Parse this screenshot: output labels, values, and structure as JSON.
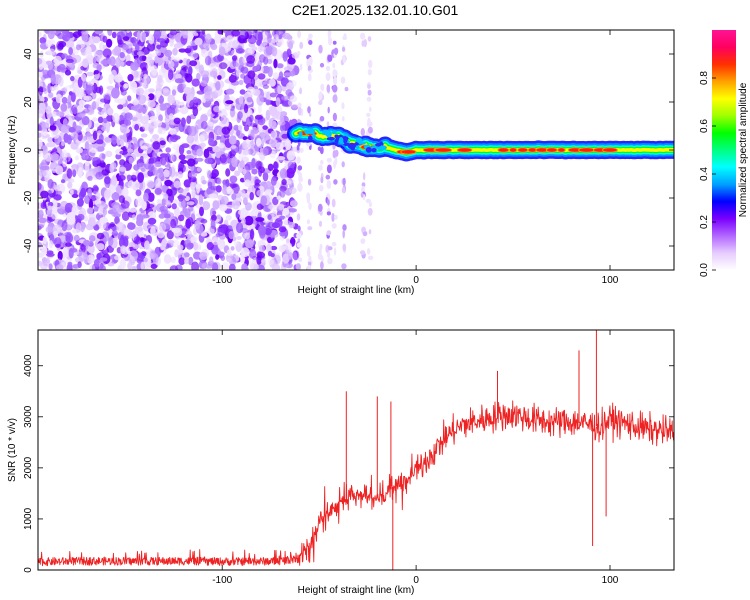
{
  "title": "C2E1.2025.132.01.10.G01",
  "chart_data": [
    {
      "type": "heatmap",
      "description_of_axes": "spectrogram",
      "xlabel": "Height of straight line (km)",
      "ylabel": "Frequency (Hz)",
      "xlim": [
        -195,
        133
      ],
      "ylim": [
        -50,
        50
      ],
      "x_ticks": [
        -100,
        0,
        100
      ],
      "x_tick_labels": [
        "-100",
        "0",
        "100"
      ],
      "y_ticks": [
        -40,
        -20,
        0,
        20,
        40
      ],
      "y_tick_labels": [
        "-40",
        "-20",
        "0",
        "20",
        "40"
      ],
      "noise_region_x": [
        -195,
        -62
      ],
      "scattered_region_x": [
        -62,
        -20
      ],
      "signal_track": {
        "x": [
          -62,
          -55,
          -48,
          -42,
          -38,
          -34,
          -30,
          -25,
          -20,
          -15,
          -10,
          -5,
          0,
          10,
          20,
          40,
          60,
          80,
          100,
          120,
          133
        ],
        "y": [
          7,
          7,
          6,
          6,
          5,
          3,
          2,
          1,
          1,
          1,
          0,
          -1,
          0,
          0,
          0,
          0,
          0,
          0,
          0,
          0,
          0
        ]
      },
      "colorbar": {
        "label": "Normalized spectral amplitude",
        "range": [
          0.0,
          1.0
        ],
        "ticks": [
          0.0,
          0.2,
          0.4,
          0.6,
          0.8
        ],
        "tick_labels": [
          "0.0",
          "0.2",
          "0.4",
          "0.6",
          "0.8"
        ],
        "colors": [
          "#ffffff",
          "#e6ccff",
          "#b266ff",
          "#7a00ff",
          "#0000ff",
          "#00a0ff",
          "#00ffff",
          "#00ff80",
          "#00ff00",
          "#a0ff00",
          "#ffff00",
          "#ffa000",
          "#ff3000",
          "#ff0060",
          "#ff1493"
        ]
      }
    },
    {
      "type": "line",
      "xlabel": "Height of straight line (km)",
      "ylabel": "SNR (10 * v/v)",
      "xlim": [
        -195,
        133
      ],
      "ylim": [
        0,
        4700
      ],
      "x_ticks": [
        -100,
        0,
        100
      ],
      "x_tick_labels": [
        "-100",
        "0",
        "100"
      ],
      "y_ticks": [
        0,
        1000,
        2000,
        3000,
        4000
      ],
      "y_tick_labels": [
        "0",
        "1000",
        "2000",
        "3000",
        "4000"
      ],
      "line_color": "#ee2222",
      "series": [
        {
          "x": [
            -195,
            -180,
            -160,
            -140,
            -120,
            -100,
            -80,
            -70,
            -62,
            -55,
            -50,
            -45,
            -40,
            -35,
            -30,
            -25,
            -20,
            -15,
            -10,
            -5,
            0,
            5,
            10,
            15,
            20,
            25,
            30,
            40,
            50,
            60,
            70,
            80,
            90,
            95,
            100,
            110,
            120,
            133
          ],
          "values": [
            160,
            170,
            175,
            170,
            175,
            165,
            170,
            175,
            220,
            500,
            900,
            1150,
            1300,
            1450,
            1500,
            1450,
            1400,
            1500,
            1700,
            1750,
            1900,
            2150,
            2350,
            2600,
            2750,
            2850,
            2900,
            3000,
            3050,
            2950,
            2900,
            2900,
            2850,
            2800,
            2950,
            2850,
            2750,
            2700
          ]
        }
      ],
      "spikes": [
        {
          "x": -36,
          "y": 3500
        },
        {
          "x": -20,
          "y": 3400
        },
        {
          "x": -13,
          "y": 3300
        },
        {
          "x": 42,
          "y": 3900
        },
        {
          "x": 84,
          "y": 4300
        },
        {
          "x": 93,
          "y": 4700
        },
        {
          "x": 91,
          "y": 470
        },
        {
          "x": 98,
          "y": 1050
        },
        {
          "x": -12,
          "y": 0
        }
      ]
    }
  ]
}
